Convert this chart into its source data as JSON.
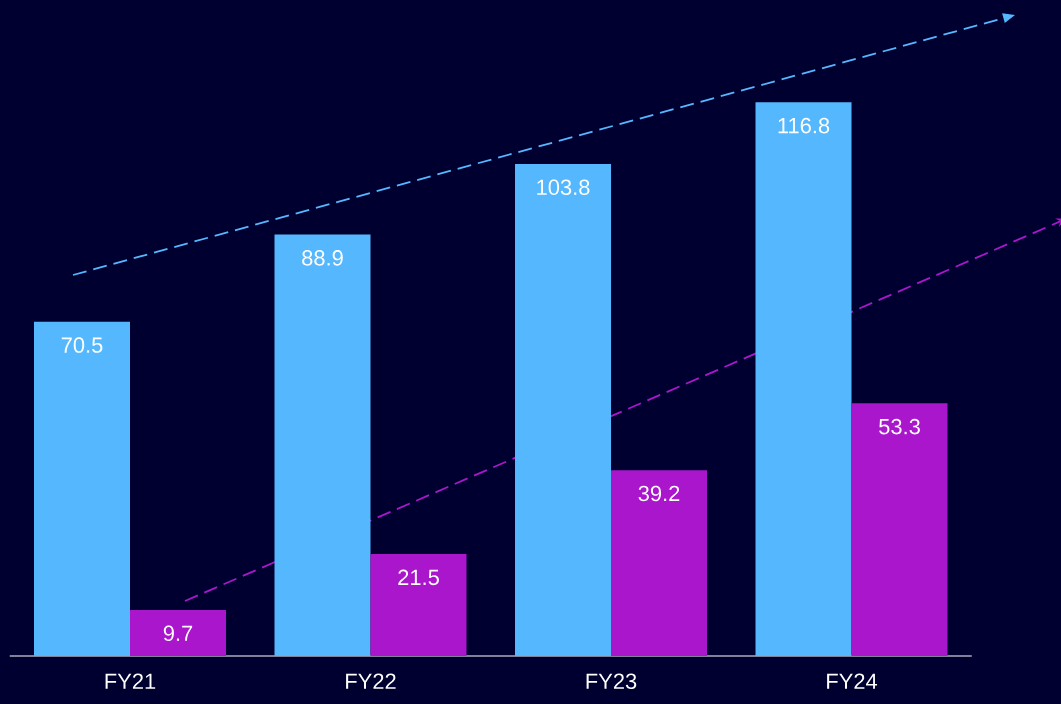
{
  "chart_data": {
    "type": "bar",
    "categories": [
      "FY21",
      "FY22",
      "FY23",
      "FY24"
    ],
    "series": [
      {
        "color": "#55b8ff",
        "values": [
          70.5,
          88.9,
          103.8,
          116.8
        ]
      },
      {
        "color": "#aa16cc",
        "values": [
          9.7,
          21.5,
          39.2,
          53.3
        ]
      }
    ],
    "data_labels": true
  }
}
